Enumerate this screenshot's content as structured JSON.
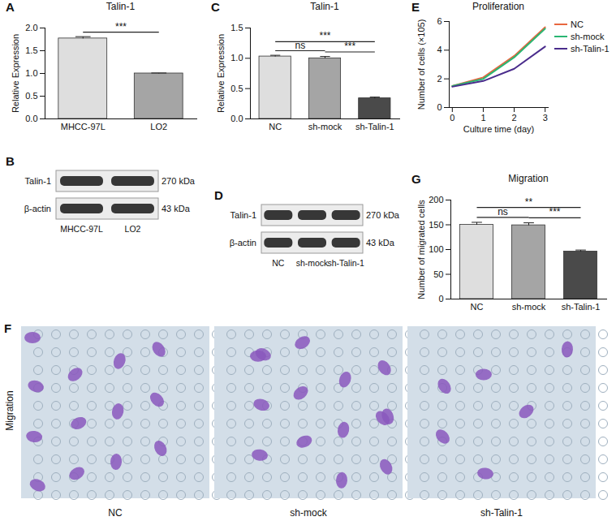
{
  "chart_data": [
    {
      "panel": "A",
      "type": "bar",
      "title": "Talin-1",
      "categories": [
        "MHCC-97L",
        "LO2"
      ],
      "values": [
        1.77,
        1.0
      ],
      "errors": [
        0.04,
        0.01
      ],
      "colors": [
        "#dedede",
        "#a5a5a5"
      ],
      "ylabel": "Relative Expression",
      "ylim": [
        0,
        2
      ],
      "yticks": [
        {
          "value": 0,
          "label": "0.0"
        },
        {
          "value": 0.5,
          "label": "0.5"
        },
        {
          "value": 1,
          "label": "1.0"
        },
        {
          "value": 1.5,
          "label": "1.5"
        },
        {
          "value": 2,
          "label": "2.0"
        }
      ],
      "annotations": [
        {
          "from": "MHCC-97L",
          "to": "LO2",
          "label": "***"
        }
      ]
    },
    {
      "panel": "C",
      "type": "bar",
      "title": "Talin-1",
      "categories": [
        "NC",
        "sh-mock",
        "sh-Talin-1"
      ],
      "values": [
        1.03,
        1.0,
        0.34
      ],
      "errors": [
        0.02,
        0.03,
        0.02
      ],
      "colors": [
        "#dedede",
        "#a5a5a5",
        "#4a4a4a"
      ],
      "ylabel": "Relative Expression",
      "ylim": [
        0,
        1.5
      ],
      "yticks": [
        {
          "value": 0,
          "label": "0.0"
        },
        {
          "value": 0.5,
          "label": "0.5"
        },
        {
          "value": 1,
          "label": "1.0"
        },
        {
          "value": 1.5,
          "label": "1.5"
        }
      ],
      "annotations": [
        {
          "from": "NC",
          "to": "sh-mock",
          "label": "ns"
        },
        {
          "from": "sh-mock",
          "to": "sh-Talin-1",
          "label": "***"
        },
        {
          "from": "NC",
          "to": "sh-Talin-1",
          "label": "***"
        }
      ]
    },
    {
      "panel": "E",
      "type": "line",
      "title": "Proliferation",
      "x": [
        0,
        1,
        2,
        3
      ],
      "xlim": [
        -0.1,
        3.1
      ],
      "xticks": [
        0,
        1,
        2,
        3
      ],
      "xlabel": "Culture time (day)",
      "ylabel": "Number of cells (×105)",
      "ylim": [
        0,
        6
      ],
      "yticks": [
        0,
        2,
        4,
        6
      ],
      "legend": "top-right",
      "series": [
        {
          "name": "NC",
          "color": "#e8673f",
          "values": [
            1.5,
            2.1,
            3.6,
            5.6
          ]
        },
        {
          "name": "sh-mock",
          "color": "#2ab673",
          "values": [
            1.5,
            2.0,
            3.5,
            5.5
          ]
        },
        {
          "name": "sh-Talin-1",
          "color": "#4a2c8c",
          "values": [
            1.45,
            1.85,
            2.7,
            4.25
          ]
        }
      ]
    },
    {
      "panel": "G",
      "type": "bar",
      "title": "Migration",
      "categories": [
        "NC",
        "sh-mock",
        "sh-Talin-1"
      ],
      "values": [
        150,
        149,
        96
      ],
      "errors": [
        5,
        5,
        3
      ],
      "colors": [
        "#dedede",
        "#a5a5a5",
        "#4a4a4a"
      ],
      "ylabel": "Number of migrated cells",
      "ylim": [
        0,
        200
      ],
      "yticks": [
        0,
        50,
        100,
        150,
        200
      ],
      "annotations": [
        {
          "from": "NC",
          "to": "sh-mock",
          "label": "ns"
        },
        {
          "from": "sh-mock",
          "to": "sh-Talin-1",
          "label": "***"
        },
        {
          "from": "NC",
          "to": "sh-Talin-1",
          "label": "**"
        }
      ]
    }
  ],
  "blots": [
    {
      "panel": "B",
      "lanes": [
        "MHCC-97L",
        "LO2"
      ],
      "rows": [
        {
          "label": "Talin-1",
          "size": "270 kDa"
        },
        {
          "label": "β-actin",
          "size": "43 kDa"
        }
      ]
    },
    {
      "panel": "D",
      "lanes": [
        "NC",
        "sh-mock",
        "sh-Talin-1"
      ],
      "rows": [
        {
          "label": "Talin-1",
          "size": "270 kDa"
        },
        {
          "label": "β-actin",
          "size": "43 kDa"
        }
      ]
    }
  ],
  "images": {
    "panel": "F",
    "row_label": "Migration",
    "captions": [
      "NC",
      "sh-mock",
      "sh-Talin-1"
    ]
  }
}
